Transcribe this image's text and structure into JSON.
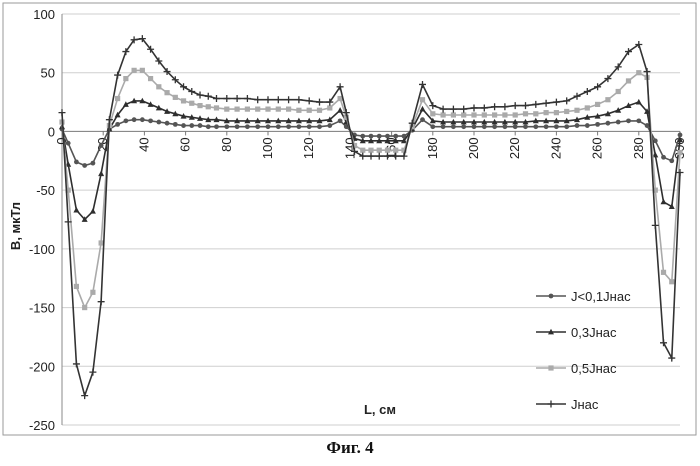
{
  "caption": "Фиг. 4",
  "chart_data": {
    "type": "line",
    "title": "",
    "xlabel": "L, см",
    "ylabel": "B, мкТл",
    "xlim": [
      0,
      300
    ],
    "ylim": [
      -250,
      100
    ],
    "xticks": [
      0,
      20,
      40,
      60,
      80,
      100,
      120,
      140,
      160,
      180,
      200,
      220,
      240,
      260,
      280,
      300
    ],
    "yticks": [
      -250,
      -200,
      -150,
      -100,
      -50,
      0,
      50,
      100
    ],
    "grid": "horizontal",
    "legend": "right",
    "x": [
      0,
      3,
      7,
      11,
      15,
      19,
      23,
      27,
      31,
      35,
      39,
      43,
      47,
      51,
      55,
      59,
      63,
      67,
      71,
      75,
      80,
      85,
      90,
      95,
      100,
      105,
      110,
      115,
      120,
      125,
      130,
      135,
      138,
      142,
      146,
      150,
      154,
      158,
      162,
      166,
      170,
      175,
      180,
      185,
      190,
      195,
      200,
      205,
      210,
      215,
      220,
      225,
      230,
      235,
      240,
      245,
      250,
      255,
      260,
      265,
      270,
      275,
      280,
      284,
      288,
      292,
      296,
      300
    ],
    "series": [
      {
        "name": "J<0,1Jнас",
        "marker": "circle",
        "color": "#555555",
        "values": [
          2,
          -10,
          -26,
          -29,
          -27,
          -12,
          2,
          6,
          9,
          10,
          10,
          9,
          8,
          7,
          6,
          5,
          5,
          5,
          4,
          4,
          4,
          4,
          4,
          4,
          4,
          4,
          4,
          4,
          4,
          4,
          5,
          9,
          4,
          -3,
          -4,
          -4,
          -4,
          -4,
          -4,
          -4,
          1,
          10,
          4,
          4,
          4,
          4,
          4,
          4,
          4,
          4,
          4,
          4,
          4,
          4,
          4,
          4,
          5,
          5,
          6,
          7,
          8,
          9,
          9,
          5,
          -8,
          -22,
          -25,
          -3
        ]
      },
      {
        "name": "0,3Jнас",
        "marker": "triangle",
        "color": "#2e2e2e",
        "values": [
          4,
          -28,
          -67,
          -75,
          -68,
          -36,
          2,
          14,
          23,
          26,
          26,
          23,
          20,
          17,
          15,
          13,
          12,
          11,
          10,
          10,
          9,
          9,
          9,
          9,
          9,
          9,
          9,
          9,
          9,
          9,
          10,
          18,
          8,
          -6,
          -8,
          -8,
          -8,
          -8,
          -8,
          -8,
          2,
          19,
          9,
          8,
          8,
          8,
          8,
          8,
          8,
          8,
          8,
          8,
          9,
          9,
          9,
          9,
          10,
          12,
          13,
          15,
          18,
          22,
          25,
          17,
          -20,
          -60,
          -64,
          -7
        ]
      },
      {
        "name": "0,5Jнас",
        "marker": "square",
        "color": "#aaaaaa",
        "values": [
          8,
          -50,
          -132,
          -150,
          -137,
          -95,
          5,
          28,
          45,
          52,
          52,
          45,
          38,
          33,
          29,
          26,
          24,
          22,
          21,
          20,
          19,
          19,
          19,
          19,
          19,
          19,
          19,
          18,
          18,
          18,
          20,
          28,
          12,
          -12,
          -16,
          -16,
          -16,
          -16,
          -16,
          -16,
          4,
          27,
          15,
          14,
          14,
          14,
          14,
          14,
          14,
          14,
          14,
          15,
          15,
          16,
          16,
          17,
          18,
          20,
          23,
          27,
          34,
          43,
          50,
          46,
          -50,
          -120,
          -128,
          -18
        ]
      },
      {
        "name": "Jнас",
        "marker": "plus",
        "color": "#333333",
        "values": [
          16,
          -77,
          -198,
          -225,
          -205,
          -145,
          10,
          48,
          68,
          78,
          79,
          70,
          60,
          51,
          44,
          38,
          34,
          31,
          30,
          28,
          28,
          28,
          28,
          27,
          27,
          27,
          27,
          27,
          26,
          25,
          25,
          38,
          16,
          -17,
          -21,
          -21,
          -21,
          -21,
          -21,
          -21,
          7,
          40,
          22,
          19,
          19,
          19,
          20,
          20,
          21,
          21,
          22,
          22,
          23,
          24,
          25,
          26,
          30,
          34,
          38,
          45,
          55,
          68,
          74,
          51,
          -80,
          -180,
          -193,
          -35
        ]
      }
    ]
  }
}
